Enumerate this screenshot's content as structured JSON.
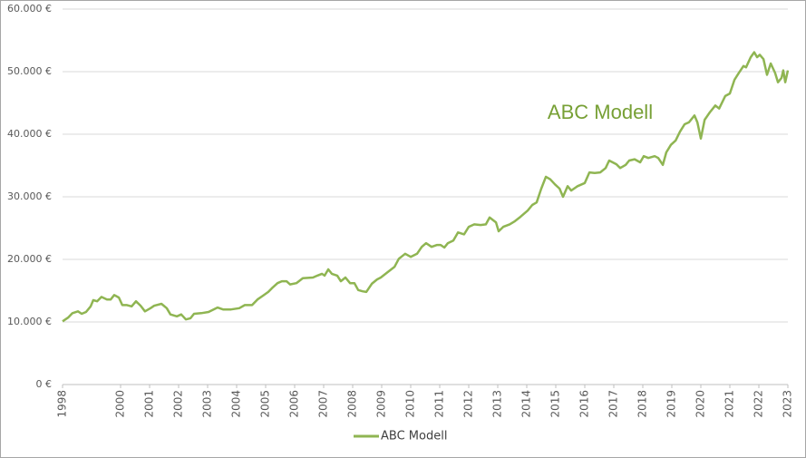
{
  "chart_data": {
    "type": "line",
    "annotation": "ABC Modell",
    "x": [
      1998.0,
      1998.19,
      1998.34,
      1998.53,
      1998.66,
      1998.81,
      1998.97,
      1999.06,
      1999.19,
      1999.34,
      1999.53,
      1999.66,
      1999.78,
      1999.94,
      2000.06,
      2000.22,
      2000.38,
      2000.53,
      2000.69,
      2000.84,
      2001.03,
      2001.16,
      2001.41,
      2001.59,
      2001.72,
      2001.94,
      2002.09,
      2002.25,
      2002.41,
      2002.53,
      2002.78,
      2003.03,
      2003.34,
      2003.53,
      2003.81,
      2004.09,
      2004.28,
      2004.53,
      2004.72,
      2004.91,
      2005.09,
      2005.22,
      2005.41,
      2005.56,
      2005.72,
      2005.84,
      2006.06,
      2006.28,
      2006.63,
      2006.78,
      2006.94,
      2007.03,
      2007.16,
      2007.28,
      2007.47,
      2007.59,
      2007.75,
      2007.91,
      2008.06,
      2008.19,
      2008.34,
      2008.47,
      2008.66,
      2008.84,
      2008.97,
      2009.22,
      2009.44,
      2009.59,
      2009.81,
      2010.0,
      2010.22,
      2010.38,
      2010.53,
      2010.72,
      2010.91,
      2011.03,
      2011.16,
      2011.28,
      2011.47,
      2011.63,
      2011.84,
      2012.0,
      2012.19,
      2012.41,
      2012.59,
      2012.72,
      2012.94,
      2013.03,
      2013.19,
      2013.41,
      2013.59,
      2013.78,
      2014.03,
      2014.19,
      2014.34,
      2014.5,
      2014.66,
      2014.81,
      2014.97,
      2015.13,
      2015.25,
      2015.41,
      2015.53,
      2015.75,
      2016.0,
      2016.16,
      2016.34,
      2016.53,
      2016.72,
      2016.84,
      2017.09,
      2017.22,
      2017.41,
      2017.53,
      2017.72,
      2017.91,
      2018.03,
      2018.19,
      2018.41,
      2018.53,
      2018.69,
      2018.81,
      2018.97,
      2019.13,
      2019.28,
      2019.44,
      2019.59,
      2019.78,
      2019.88,
      2020.0,
      2020.13,
      2020.31,
      2020.5,
      2020.63,
      2020.84,
      2021.0,
      2021.16,
      2021.31,
      2021.47,
      2021.56,
      2021.72,
      2021.84,
      2021.94,
      2022.03,
      2022.16,
      2022.28,
      2022.41,
      2022.56,
      2022.66,
      2022.78,
      2022.84,
      2022.91,
      2023.0
    ],
    "series": [
      {
        "name": "ABC Modell",
        "color": "#8fb552",
        "values": [
          10100,
          10700,
          11400,
          11700,
          11300,
          11600,
          12500,
          13500,
          13300,
          14000,
          13600,
          13600,
          14300,
          13900,
          12700,
          12700,
          12500,
          13300,
          12600,
          11700,
          12200,
          12600,
          12900,
          12200,
          11200,
          10900,
          11200,
          10400,
          10600,
          11300,
          11400,
          11600,
          12300,
          12000,
          12000,
          12200,
          12700,
          12700,
          13600,
          14200,
          14800,
          15400,
          16200,
          16500,
          16500,
          16000,
          16200,
          17000,
          17100,
          17400,
          17700,
          17400,
          18400,
          17700,
          17400,
          16500,
          17100,
          16200,
          16200,
          15100,
          14900,
          14800,
          16100,
          16800,
          17100,
          18000,
          18800,
          20100,
          20900,
          20400,
          20900,
          22000,
          22600,
          22000,
          22300,
          22300,
          21900,
          22600,
          23000,
          24300,
          24000,
          25200,
          25600,
          25500,
          25600,
          26700,
          25900,
          24500,
          25200,
          25600,
          26100,
          26800,
          27800,
          28700,
          29100,
          31300,
          33200,
          32800,
          32000,
          31300,
          30000,
          31700,
          31000,
          31700,
          32200,
          33900,
          33800,
          33900,
          34600,
          35800,
          35200,
          34600,
          35100,
          35800,
          36000,
          35500,
          36500,
          36200,
          36500,
          36200,
          35100,
          37100,
          38300,
          39000,
          40400,
          41600,
          41900,
          43000,
          41900,
          39300,
          42300,
          43500,
          44600,
          44100,
          46100,
          46500,
          48700,
          49800,
          50900,
          50700,
          52300,
          53100,
          52300,
          52700,
          52000,
          49500,
          51300,
          49800,
          48300,
          49000,
          50200,
          48300,
          50200
        ]
      }
    ],
    "xlim": [
      1998,
      2023
    ],
    "xticks": [
      1998,
      2000,
      2001,
      2002,
      2003,
      2004,
      2005,
      2006,
      2007,
      2008,
      2009,
      2010,
      2011,
      2012,
      2013,
      2014,
      2015,
      2016,
      2017,
      2018,
      2019,
      2020,
      2021,
      2022,
      2023
    ],
    "ylim": [
      0,
      60000
    ],
    "yticks": [
      {
        "value": 0,
        "label": "0 €"
      },
      {
        "value": 10000,
        "label": "10.000 €"
      },
      {
        "value": 20000,
        "label": "20.000 €"
      },
      {
        "value": 30000,
        "label": "30.000 €"
      },
      {
        "value": 40000,
        "label": "40.000 €"
      },
      {
        "value": 50000,
        "label": "50.000 €"
      },
      {
        "value": 60000,
        "label": "60.000 €"
      }
    ],
    "grid": true,
    "legend": "bottom"
  }
}
